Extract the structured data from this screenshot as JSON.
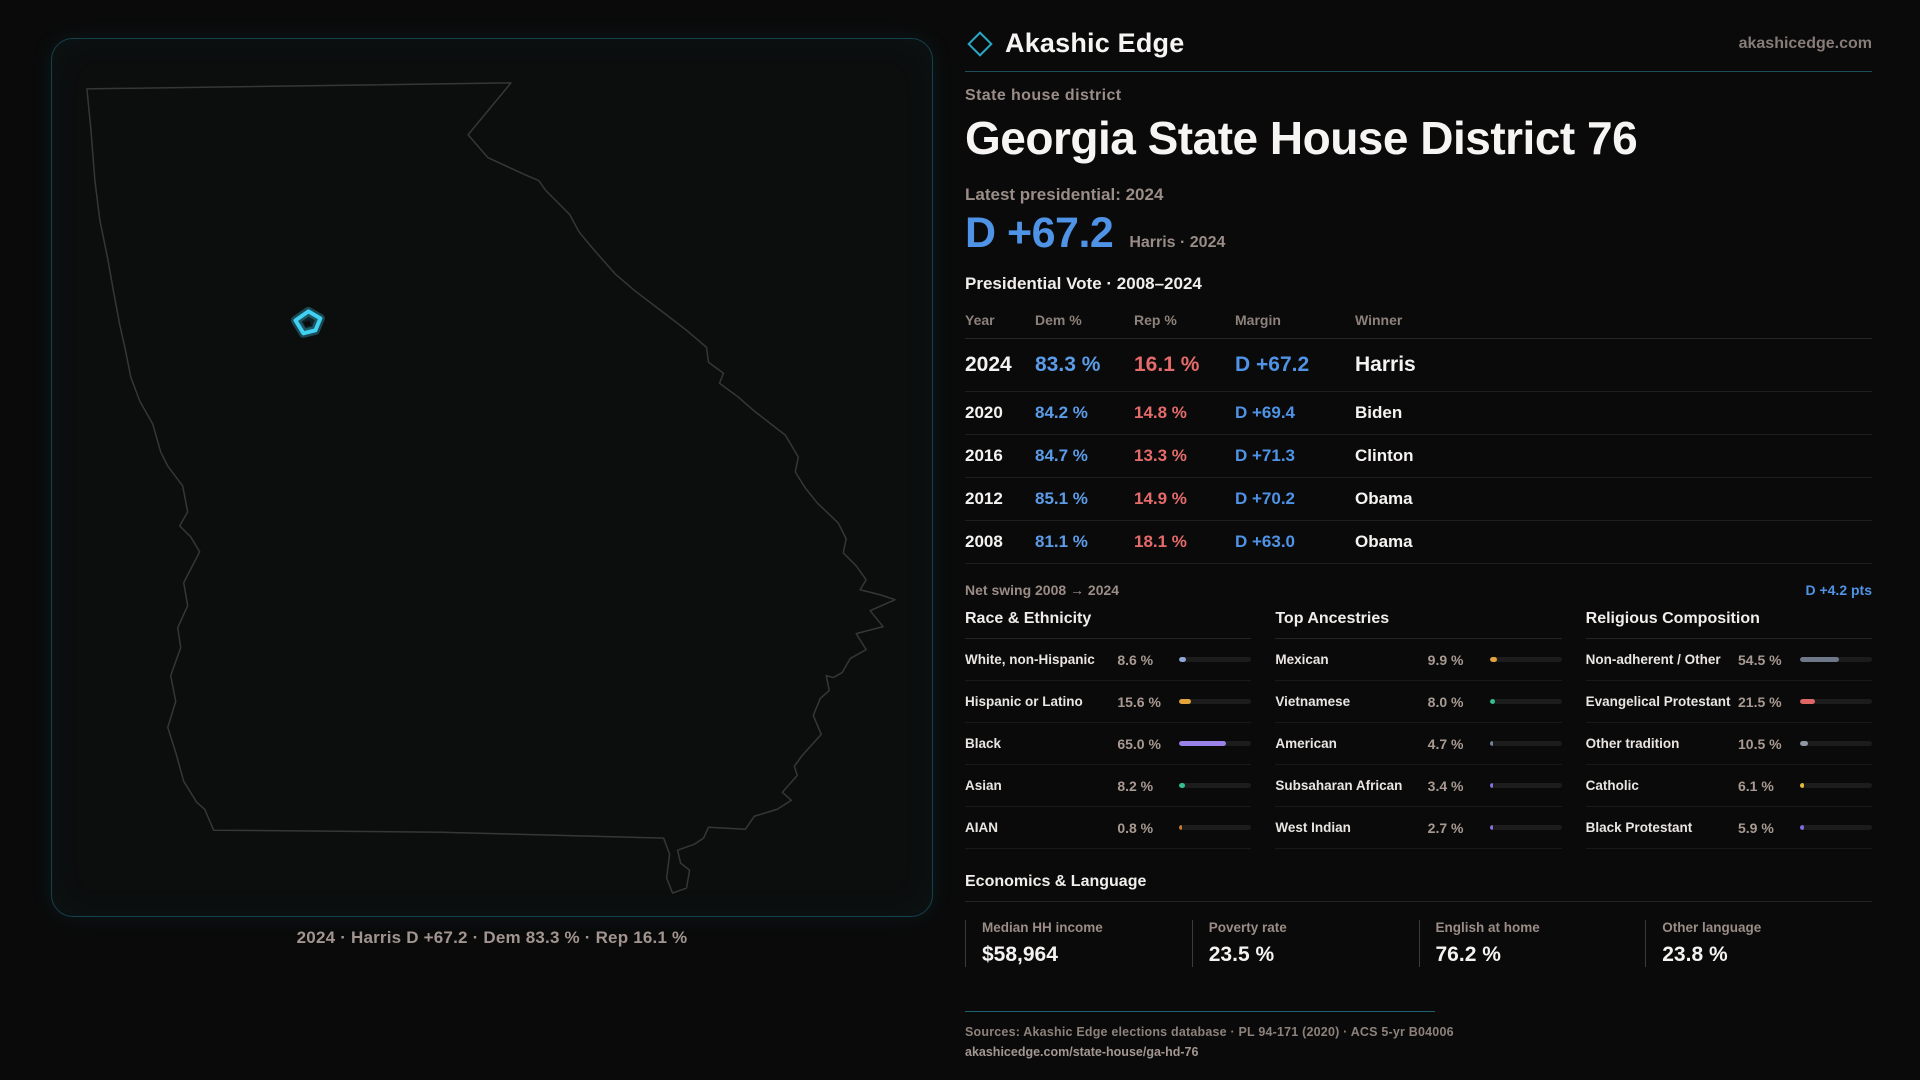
{
  "brand": {
    "name": "Akashic Edge",
    "domain": "akashicedge.com"
  },
  "page": {
    "kicker": "State house district",
    "title": "Georgia State House District 76"
  },
  "latest": {
    "label": "Latest presidential: 2024",
    "margin": "D +67.2",
    "context": "Harris · 2024"
  },
  "vote_table": {
    "title": "Presidential Vote · 2008–2024",
    "columns": [
      "Year",
      "Dem %",
      "Rep %",
      "Margin",
      "Winner"
    ],
    "rows": [
      {
        "year": "2024",
        "dem": "83.3 %",
        "rep": "16.1 %",
        "margin": "D +67.2",
        "winner": "Harris"
      },
      {
        "year": "2020",
        "dem": "84.2 %",
        "rep": "14.8 %",
        "margin": "D +69.4",
        "winner": "Biden"
      },
      {
        "year": "2016",
        "dem": "84.7 %",
        "rep": "13.3 %",
        "margin": "D +71.3",
        "winner": "Clinton"
      },
      {
        "year": "2012",
        "dem": "85.1 %",
        "rep": "14.9 %",
        "margin": "D +70.2",
        "winner": "Obama"
      },
      {
        "year": "2008",
        "dem": "81.1 %",
        "rep": "18.1 %",
        "margin": "D +63.0",
        "winner": "Obama"
      }
    ]
  },
  "swing": {
    "label": "Net swing 2008 → 2024",
    "value": "D +4.2 pts"
  },
  "demographics": {
    "race": {
      "title": "Race & Ethnicity",
      "rows": [
        {
          "label": "White, non-Hispanic",
          "value": "8.6 %",
          "pct": 8.6,
          "color": "#8fa6d6"
        },
        {
          "label": "Hispanic or Latino",
          "value": "15.6 %",
          "pct": 15.6,
          "color": "#e2a23c"
        },
        {
          "label": "Black",
          "value": "65.0 %",
          "pct": 65.0,
          "color": "#9b82e8"
        },
        {
          "label": "Asian",
          "value": "8.2 %",
          "pct": 8.2,
          "color": "#33bf8e"
        },
        {
          "label": "AIAN",
          "value": "0.8 %",
          "pct": 0.8,
          "color": "#c87a28"
        }
      ]
    },
    "ancestries": {
      "title": "Top Ancestries",
      "rows": [
        {
          "label": "Mexican",
          "value": "9.9 %",
          "pct": 9.9,
          "color": "#e2a23c"
        },
        {
          "label": "Vietnamese",
          "value": "8.0 %",
          "pct": 8.0,
          "color": "#33bf8e"
        },
        {
          "label": "American",
          "value": "4.7 %",
          "pct": 4.7,
          "color": "#7585a0"
        },
        {
          "label": "Subsaharan African",
          "value": "3.4 %",
          "pct": 3.4,
          "color": "#8a6fe0"
        },
        {
          "label": "West Indian",
          "value": "2.7 %",
          "pct": 2.7,
          "color": "#8a6fe0"
        }
      ]
    },
    "religion": {
      "title": "Religious Composition",
      "rows": [
        {
          "label": "Non-adherent / Other",
          "value": "54.5 %",
          "pct": 54.5,
          "color": "#6e7888"
        },
        {
          "label": "Evangelical Protestant",
          "value": "21.5 %",
          "pct": 21.5,
          "color": "#e06565"
        },
        {
          "label": "Other tradition",
          "value": "10.5 %",
          "pct": 10.5,
          "color": "#9097a3"
        },
        {
          "label": "Catholic",
          "value": "6.1 %",
          "pct": 6.1,
          "color": "#e3b93e"
        },
        {
          "label": "Black Protestant",
          "value": "5.9 %",
          "pct": 5.9,
          "color": "#7f6ae0"
        }
      ]
    }
  },
  "economics": {
    "title": "Economics & Language",
    "stats": [
      {
        "label": "Median HH income",
        "value": "$58,964"
      },
      {
        "label": "Poverty rate",
        "value": "23.5 %"
      },
      {
        "label": "English at home",
        "value": "76.2 %"
      },
      {
        "label": "Other language",
        "value": "23.8 %"
      }
    ]
  },
  "map": {
    "caption": "2024 · Harris D +67.2 · Dem 83.3 % · Rep 16.1 %"
  },
  "footer": {
    "sources": "Sources: Akashic Edge elections database · PL 94-171 (2020) · ACS 5-yr B04006",
    "permalink": "akashicedge.com/state-house/ga-hd-76"
  },
  "colors": {
    "dem_blue": "#4f93e6",
    "rep_red": "#e56b6b",
    "accent_teal": "#2aa7c5",
    "district_cyan": "#3fd0f2"
  }
}
